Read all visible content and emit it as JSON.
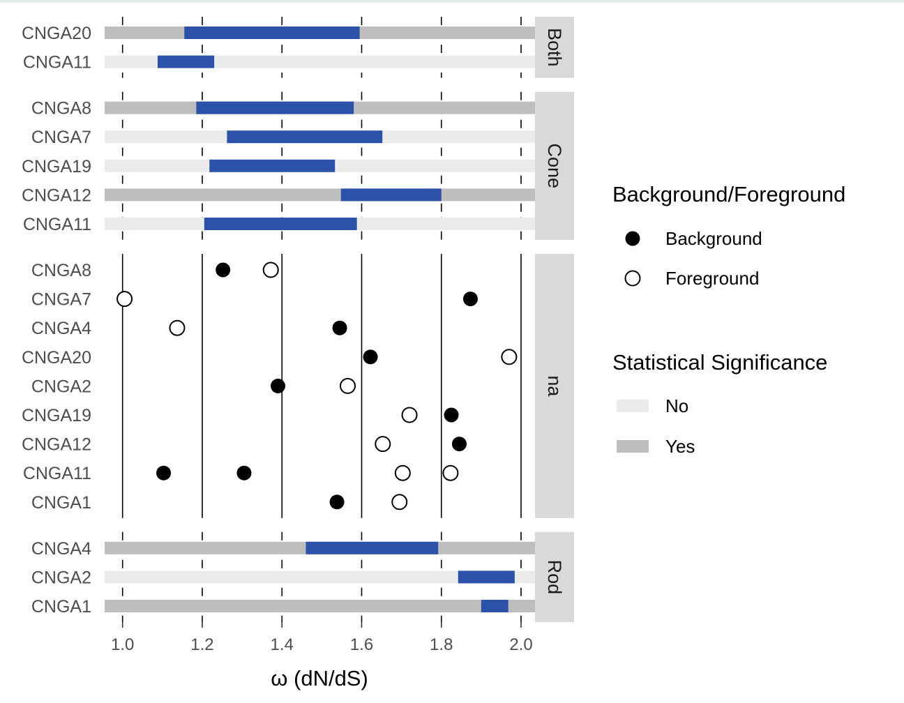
{
  "chart_data": {
    "type": "faceted-bar-and-dot",
    "xlabel": "ω (dN/dS)",
    "xlim": [
      0.955,
      2.035
    ],
    "x_ticks": [
      1.0,
      1.2,
      1.4,
      1.6,
      1.8,
      2.0
    ],
    "x_tick_labels": [
      "1.0",
      "1.2",
      "1.4",
      "1.6",
      "1.8",
      "2.0"
    ],
    "colors": {
      "not_significant": "#ebebeb",
      "significant": "#bebebe",
      "range": "#2b52a8",
      "strip": "#d9d9d9"
    },
    "facets": [
      {
        "label": "Both",
        "kind": "range",
        "rows": [
          {
            "gene": "CNGA20",
            "significant": "Yes",
            "start": 1.155,
            "end": 1.595
          },
          {
            "gene": "CNGA11",
            "significant": "No",
            "start": 1.088,
            "end": 1.23
          }
        ]
      },
      {
        "label": "Cone",
        "kind": "range",
        "rows": [
          {
            "gene": "CNGA8",
            "significant": "Yes",
            "start": 1.185,
            "end": 1.58
          },
          {
            "gene": "CNGA7",
            "significant": "No",
            "start": 1.262,
            "end": 1.652
          },
          {
            "gene": "CNGA19",
            "significant": "No",
            "start": 1.218,
            "end": 1.533
          },
          {
            "gene": "CNGA12",
            "significant": "Yes",
            "start": 1.548,
            "end": 1.8
          },
          {
            "gene": "CNGA11",
            "significant": "No",
            "start": 1.205,
            "end": 1.588
          }
        ]
      },
      {
        "label": "na",
        "kind": "points",
        "rows": [
          {
            "gene": "CNGA8",
            "background": [
              1.252
            ],
            "foreground": [
              1.372
            ]
          },
          {
            "gene": "CNGA7",
            "background": [
              1.873
            ],
            "foreground": [
              1.005
            ]
          },
          {
            "gene": "CNGA4",
            "background": [
              1.545
            ],
            "foreground": [
              1.137
            ]
          },
          {
            "gene": "CNGA20",
            "background": [
              1.622
            ],
            "foreground": [
              1.97
            ]
          },
          {
            "gene": "CNGA2",
            "background": [
              1.39
            ],
            "foreground": [
              1.565
            ]
          },
          {
            "gene": "CNGA19",
            "background": [
              1.825
            ],
            "foreground": [
              1.72
            ]
          },
          {
            "gene": "CNGA12",
            "background": [
              1.845
            ],
            "foreground": [
              1.653
            ]
          },
          {
            "gene": "CNGA11",
            "background": [
              1.103,
              1.305
            ],
            "foreground": [
              1.703,
              1.823
            ]
          },
          {
            "gene": "CNGA1",
            "background": [
              1.538
            ],
            "foreground": [
              1.695
            ]
          }
        ]
      },
      {
        "label": "Rod",
        "kind": "range",
        "rows": [
          {
            "gene": "CNGA4",
            "significant": "Yes",
            "start": 1.46,
            "end": 1.792
          },
          {
            "gene": "CNGA2",
            "significant": "No",
            "start": 1.842,
            "end": 1.984
          },
          {
            "gene": "CNGA1",
            "significant": "Yes",
            "start": 1.9,
            "end": 1.968
          }
        ]
      }
    ],
    "legend": {
      "placement": "right",
      "groups": [
        {
          "title": "Background/Foreground",
          "items": [
            {
              "label": "Background",
              "symbol": "filled-circle"
            },
            {
              "label": "Foreground",
              "symbol": "open-circle"
            }
          ]
        },
        {
          "title": "Statistical Significance",
          "items": [
            {
              "label": "No",
              "color": "#ebebeb"
            },
            {
              "label": "Yes",
              "color": "#bebebe"
            }
          ]
        }
      ]
    }
  }
}
